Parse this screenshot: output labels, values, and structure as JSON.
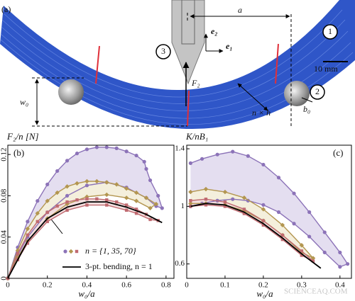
{
  "panel_a": {
    "label": "(a)",
    "a": "a",
    "n_layers": "n layers",
    "e2": "e₂",
    "e1": "e₁",
    "markers": [
      "1",
      "2",
      "3"
    ],
    "scale": "10 mm",
    "w0": "w₀",
    "F2": "F₂",
    "nh": "n × h",
    "b0": "b₀"
  },
  "watermark": "SCIENCEAQ.COM",
  "chart_data": [
    {
      "type": "line",
      "panel": "(b)",
      "ylabel": "F₂/n [N]",
      "xlabel": "w₀/a",
      "xlim": [
        0,
        0.84
      ],
      "ylim": [
        0,
        0.129
      ],
      "xticks": [
        0,
        0.2,
        0.4,
        0.6,
        0.8
      ],
      "yticks": [
        0,
        0.04,
        0.08,
        0.12
      ],
      "legend_text": "n = {1, 35, 70}",
      "series": [
        {
          "color": "#8c73b8",
          "fill": "#e4def0",
          "marker": "circle",
          "x": [
            0,
            0.05,
            0.1,
            0.15,
            0.2,
            0.25,
            0.3,
            0.35,
            0.4,
            0.45,
            0.5,
            0.55,
            0.6,
            0.65,
            0.69,
            0.7,
            0.72,
            0.76,
            0.78,
            0.75,
            0.7,
            0.6,
            0.5,
            0.4,
            0.3,
            0.2,
            0.1,
            0.05,
            0
          ],
          "values": [
            0,
            0.03,
            0.055,
            0.075,
            0.091,
            0.104,
            0.114,
            0.121,
            0.125,
            0.127,
            0.127,
            0.126,
            0.123,
            0.119,
            0.113,
            0.106,
            0.095,
            0.08,
            0.068,
            0.07,
            0.078,
            0.088,
            0.093,
            0.09,
            0.08,
            0.064,
            0.04,
            0.022,
            0
          ]
        },
        {
          "color": "#b39650",
          "fill": "#f4efdc",
          "marker": "diamond",
          "x": [
            0,
            0.05,
            0.1,
            0.15,
            0.2,
            0.25,
            0.3,
            0.35,
            0.4,
            0.45,
            0.5,
            0.55,
            0.6,
            0.65,
            0.7,
            0.75,
            0.72,
            0.65,
            0.6,
            0.5,
            0.4,
            0.3,
            0.2,
            0.1,
            0.05,
            0
          ],
          "values": [
            0,
            0.027,
            0.048,
            0.063,
            0.075,
            0.083,
            0.089,
            0.092,
            0.094,
            0.094,
            0.093,
            0.091,
            0.087,
            0.083,
            0.078,
            0.072,
            0.068,
            0.075,
            0.078,
            0.081,
            0.079,
            0.072,
            0.058,
            0.036,
            0.02,
            0
          ]
        },
        {
          "color": "#c06a70",
          "fill": "#f2dede",
          "marker": "square",
          "x": [
            0,
            0.05,
            0.1,
            0.15,
            0.2,
            0.25,
            0.3,
            0.35,
            0.4,
            0.45,
            0.5,
            0.55,
            0.6,
            0.65,
            0.7,
            0.76,
            0.72,
            0.65,
            0.6,
            0.5,
            0.4,
            0.3,
            0.2,
            0.1,
            0.05,
            0
          ],
          "values": [
            0,
            0.024,
            0.042,
            0.055,
            0.064,
            0.07,
            0.074,
            0.076,
            0.077,
            0.077,
            0.076,
            0.074,
            0.071,
            0.067,
            0.062,
            0.056,
            0.057,
            0.063,
            0.066,
            0.071,
            0.071,
            0.066,
            0.055,
            0.034,
            0.018,
            0
          ]
        },
        {
          "name": "3-pt. bending, n = 1",
          "color": "#000000",
          "x": [
            0,
            0.1,
            0.2,
            0.3,
            0.4,
            0.5,
            0.6,
            0.7,
            0.78
          ],
          "values": [
            0,
            0.036,
            0.058,
            0.069,
            0.074,
            0.074,
            0.069,
            0.062,
            0.054
          ]
        }
      ]
    },
    {
      "type": "line",
      "panel": "(c)",
      "ylabel": "K/nB₁",
      "xlabel": "w₀/a",
      "xlim": [
        0,
        0.43
      ],
      "ylim": [
        0.5,
        1.425
      ],
      "xticks": [
        0,
        0.1,
        0.2,
        0.3,
        0.4
      ],
      "yticks": [
        0.6,
        1,
        1.4
      ],
      "series": [
        {
          "color": "#8c73b8",
          "fill": "#e4def0",
          "marker": "circle",
          "x": [
            0.01,
            0.04,
            0.08,
            0.12,
            0.16,
            0.2,
            0.24,
            0.28,
            0.32,
            0.36,
            0.4,
            0.42,
            0.4,
            0.36,
            0.32,
            0.28,
            0.24,
            0.2,
            0.16,
            0.12,
            0.08,
            0.04,
            0.01
          ],
          "values": [
            1.3,
            1.33,
            1.36,
            1.38,
            1.35,
            1.29,
            1.2,
            1.09,
            0.96,
            0.82,
            0.68,
            0.6,
            0.58,
            0.68,
            0.79,
            0.88,
            0.96,
            1.01,
            1.04,
            1.05,
            1.04,
            1.02,
            1.0
          ]
        },
        {
          "color": "#b39650",
          "fill": "#f4efdc",
          "marker": "diamond",
          "x": [
            0.01,
            0.05,
            0.1,
            0.15,
            0.2,
            0.25,
            0.3,
            0.33,
            0.3,
            0.25,
            0.2,
            0.15,
            0.1,
            0.05,
            0.01
          ],
          "values": [
            1.1,
            1.12,
            1.1,
            1.06,
            0.98,
            0.87,
            0.73,
            0.64,
            0.68,
            0.8,
            0.9,
            0.97,
            1.01,
            1.02,
            1.02
          ]
        },
        {
          "color": "#c06a70",
          "fill": "#f2dede",
          "marker": "square",
          "x": [
            0.01,
            0.05,
            0.1,
            0.15,
            0.2,
            0.25,
            0.3,
            0.33,
            0.3,
            0.25,
            0.2,
            0.15,
            0.1,
            0.05,
            0.01
          ],
          "values": [
            1.04,
            1.05,
            1.03,
            0.98,
            0.9,
            0.8,
            0.69,
            0.62,
            0.66,
            0.77,
            0.87,
            0.95,
            1.0,
            1.01,
            1.0
          ]
        },
        {
          "color": "#000000",
          "x": [
            0.01,
            0.05,
            0.1,
            0.15,
            0.2,
            0.25,
            0.3,
            0.35
          ],
          "values": [
            1.0,
            1.02,
            1.01,
            0.96,
            0.88,
            0.78,
            0.67,
            0.57
          ]
        }
      ]
    }
  ]
}
